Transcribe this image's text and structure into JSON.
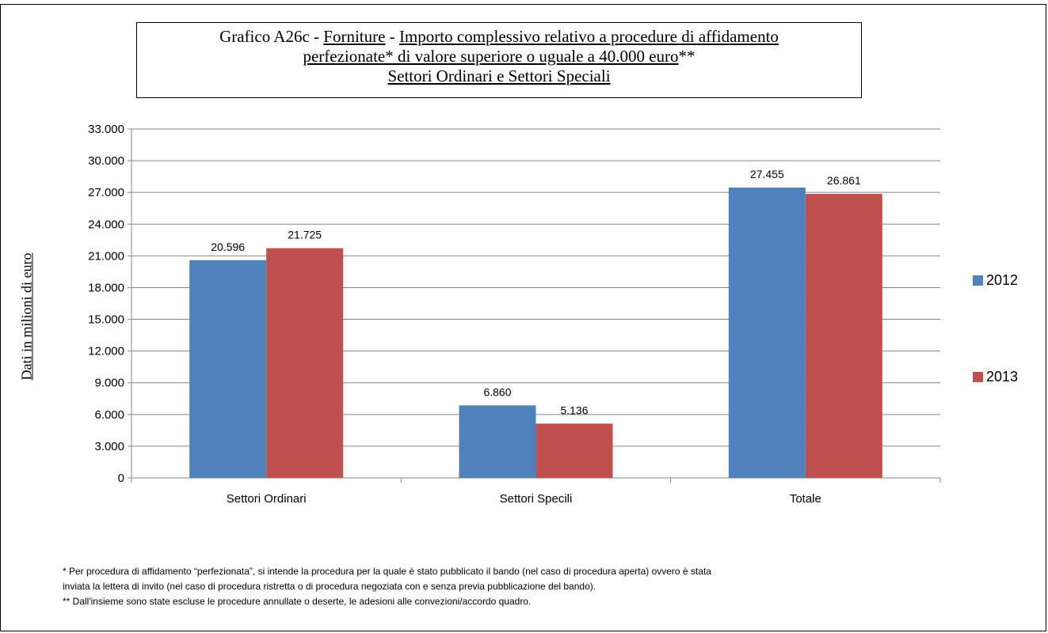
{
  "chart_data": {
    "type": "bar",
    "title": {
      "line1_prefix": "Grafico  A26c - ",
      "line1_forniture": "Forniture",
      "line1_sep": " - ",
      "line1_rest": "Importo complessivo relativo a procedure di affidamento",
      "line2_underlined": "perfezionate* di valore superiore o uguale a 40.000 euro",
      "line2_suffix": "**",
      "line3": "Settori Ordinari e Settori Speciali"
    },
    "ylabel": "Dati in milioni di euro",
    "xlabel": "",
    "ylim": [
      0,
      33000
    ],
    "yticks": [
      0,
      3000,
      6000,
      9000,
      12000,
      15000,
      18000,
      21000,
      24000,
      27000,
      30000,
      33000
    ],
    "ytick_labels": [
      "0",
      "3.000",
      "6.000",
      "9.000",
      "12.000",
      "15.000",
      "18.000",
      "21.000",
      "24.000",
      "27.000",
      "30.000",
      "33.000"
    ],
    "categories": [
      "Settori Ordinari",
      "Settori Specili",
      "Totale"
    ],
    "series": [
      {
        "name": "2012",
        "color": "#4f81bd",
        "values": [
          20596,
          6860,
          27455
        ],
        "labels": [
          "20.596",
          "6.860",
          "27.455"
        ]
      },
      {
        "name": "2013",
        "color": "#c0504d",
        "values": [
          21725,
          5136,
          26861
        ],
        "labels": [
          "21.725",
          "5.136",
          "26.861"
        ]
      }
    ],
    "grid": true,
    "legend_position": "right"
  },
  "footnotes": {
    "note1_line1": "* Per procedura di affidamento “perfezionata”, si intende la procedura per la quale è stato pubblicato il bando (nel caso di procedura aperta) ovvero è stata",
    "note1_line2": "inviata la lettera di invito (nel caso di procedura ristretta o di procedura negoziata con e senza previa pubblicazione del bando).",
    "note2": "** Dall'insieme sono state escluse le procedure annullate o deserte, le adesioni alle convezioni/accordo quadro."
  }
}
